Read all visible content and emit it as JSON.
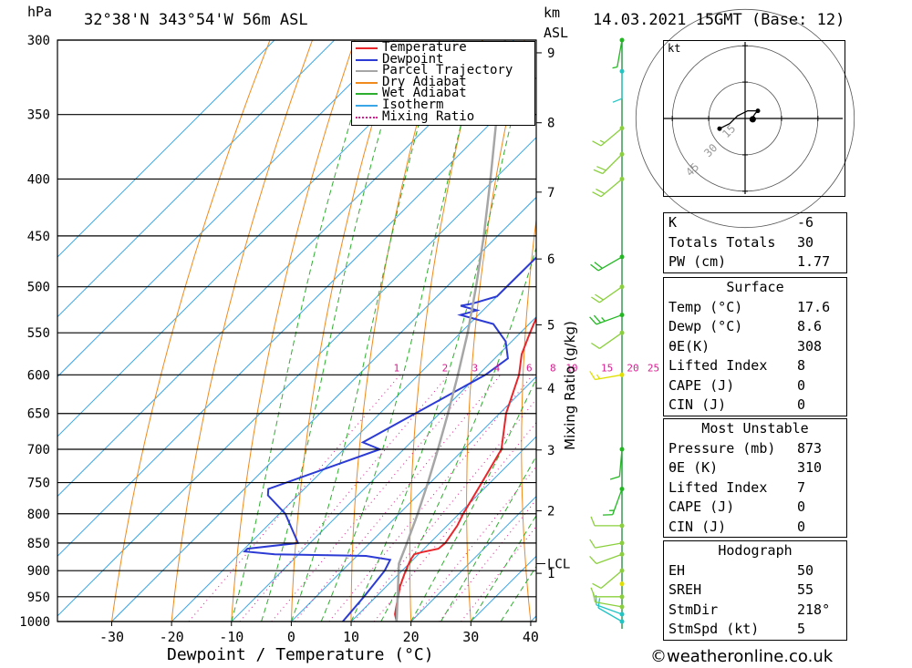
{
  "header": {
    "hpa_label": "hPa",
    "location": "32°38'N  343°54'W  56m  ASL",
    "km_label": "km",
    "asl_label": "ASL",
    "datetime": "14.03.2021  15GMT  (Base: 12)"
  },
  "chart_data": {
    "type": "line",
    "title": "",
    "xlabel": "Dewpoint / Temperature (°C)",
    "ylabel": "hPa",
    "xlim": [
      -40,
      40
    ],
    "ylim": [
      1000,
      300
    ],
    "y_scale": "log",
    "x_ticks": [
      -30,
      -20,
      -10,
      0,
      10,
      20,
      30,
      40
    ],
    "pressure_levels": [
      300,
      350,
      400,
      450,
      500,
      550,
      600,
      650,
      700,
      750,
      800,
      850,
      900,
      950,
      1000
    ],
    "km_ticks": [
      {
        "km": "1",
        "p": 905
      },
      {
        "km": "2",
        "p": 795
      },
      {
        "km": "3",
        "p": 701
      },
      {
        "km": "4",
        "p": 617
      },
      {
        "km": "5",
        "p": 541
      },
      {
        "km": "6",
        "p": 472
      },
      {
        "km": "7",
        "p": 411
      },
      {
        "km": "8",
        "p": 356
      },
      {
        "km": "9",
        "p": 308
      }
    ],
    "lcl": {
      "label": "LCL",
      "p": 887
    },
    "mixing_ratio_label": "Mixing Ratio (g/kg)",
    "mixing_ratio_values": [
      "1",
      "2",
      "3",
      "4",
      "6",
      "8",
      "10",
      "15",
      "20",
      "25"
    ],
    "dry_adiabats": [
      -30,
      -20,
      -10,
      0,
      10,
      20,
      30,
      40,
      50,
      60,
      70,
      80,
      90,
      100,
      110,
      120
    ],
    "wet_adiabats": [
      -10,
      -5,
      0,
      5,
      10,
      15,
      20,
      25,
      30,
      35
    ],
    "isotherms": [
      -100,
      -90,
      -80,
      -70,
      -60,
      -50,
      -40,
      -30,
      -20,
      -10,
      0,
      10,
      20,
      30,
      40
    ],
    "series": [
      {
        "name": "Temperature",
        "color": "#e8262b",
        "points": [
          [
            1000,
            17.6
          ],
          [
            985,
            16.1
          ],
          [
            960,
            14.4
          ],
          [
            930,
            12.3
          ],
          [
            900,
            10.6
          ],
          [
            880,
            9.6
          ],
          [
            870,
            9.3
          ],
          [
            866,
            10.3
          ],
          [
            860,
            12.4
          ],
          [
            850,
            12.6
          ],
          [
            820,
            11.7
          ],
          [
            800,
            10.7
          ],
          [
            750,
            8.6
          ],
          [
            700,
            6.3
          ],
          [
            650,
            1.1
          ],
          [
            600,
            -3.2
          ],
          [
            575,
            -6.2
          ],
          [
            550,
            -8.4
          ],
          [
            500,
            -12.8
          ],
          [
            450,
            -18.9
          ],
          [
            400,
            -26.1
          ],
          [
            350,
            -36.2
          ],
          [
            320,
            -43
          ],
          [
            300,
            -47.2
          ]
        ]
      },
      {
        "name": "Dewpoint",
        "color": "#2b3bd4",
        "points": [
          [
            1000,
            8.6
          ],
          [
            950,
            8.0
          ],
          [
            900,
            7.1
          ],
          [
            880,
            6.2
          ],
          [
            873,
            1.5
          ],
          [
            870,
            -14
          ],
          [
            865,
            -19.5
          ],
          [
            860,
            -19.5
          ],
          [
            850,
            -12
          ],
          [
            800,
            -19
          ],
          [
            770,
            -25
          ],
          [
            760,
            -26
          ],
          [
            700,
            -14
          ],
          [
            690,
            -18
          ],
          [
            600,
            -8.8
          ],
          [
            580,
            -7.8
          ],
          [
            560,
            -11
          ],
          [
            540,
            -16
          ],
          [
            530,
            -23
          ],
          [
            525,
            -21
          ],
          [
            520,
            -24.5
          ],
          [
            518,
            -23
          ],
          [
            510,
            -20
          ],
          [
            450,
            -19.9
          ],
          [
            400,
            -26.8
          ],
          [
            350,
            -38.8
          ],
          [
            345,
            -36.5
          ],
          [
            336,
            -37
          ],
          [
            330,
            -36
          ],
          [
            320,
            -40
          ],
          [
            315,
            -50
          ],
          [
            312,
            -41
          ],
          [
            305,
            -42
          ],
          [
            300,
            -44
          ]
        ]
      },
      {
        "name": "Parcel Trajectory",
        "color": "#a6a6a6",
        "points": [
          [
            1000,
            17.6
          ],
          [
            887,
            8.3
          ],
          [
            850,
            6.2
          ],
          [
            800,
            3.1
          ],
          [
            750,
            -0.4
          ],
          [
            700,
            -4.3
          ],
          [
            650,
            -8.6
          ],
          [
            600,
            -13.4
          ],
          [
            550,
            -18.8
          ],
          [
            500,
            -25.1
          ],
          [
            450,
            -32.3
          ],
          [
            400,
            -40.7
          ],
          [
            350,
            -50.4
          ],
          [
            300,
            -61.5
          ]
        ]
      }
    ],
    "legend_placement": "top-right",
    "grid": true
  },
  "legend": [
    {
      "label": "Temperature",
      "color": "#e8262b",
      "style": "solid"
    },
    {
      "label": "Dewpoint",
      "color": "#2b3bd4",
      "style": "solid"
    },
    {
      "label": "Parcel Trajectory",
      "color": "#a6a6a6",
      "style": "solid"
    },
    {
      "label": "Dry Adiabat",
      "color": "#f08a1c",
      "style": "solid"
    },
    {
      "label": "Wet Adiabat",
      "color": "#2eae2e",
      "style": "solid"
    },
    {
      "label": "Isotherm",
      "color": "#39a6e8",
      "style": "solid"
    },
    {
      "label": "Mixing Ratio",
      "color": "#d81b8f",
      "style": "dotted"
    }
  ],
  "wind_profile": {
    "levels": [
      {
        "p": 1000,
        "dir": 300,
        "spd": 10,
        "color": "#22c4c4"
      },
      {
        "p": 985,
        "dir": 290,
        "spd": 10,
        "color": "#22c4c4"
      },
      {
        "p": 970,
        "dir": 280,
        "spd": 10,
        "color": "#8ad03c"
      },
      {
        "p": 950,
        "dir": 270,
        "spd": 10,
        "color": "#8ad03c"
      },
      {
        "p": 925,
        "dir": 0,
        "spd": 0,
        "color": "#e0e000"
      },
      {
        "p": 900,
        "dir": 230,
        "spd": 10,
        "color": "#8ad03c"
      },
      {
        "p": 870,
        "dir": 250,
        "spd": 10,
        "color": "#8ad03c"
      },
      {
        "p": 850,
        "dir": 260,
        "spd": 10,
        "color": "#8ad03c"
      },
      {
        "p": 820,
        "dir": 270,
        "spd": 10,
        "color": "#8ad03c"
      },
      {
        "p": 760,
        "dir": 200,
        "spd": 15,
        "color": "#22b822"
      },
      {
        "p": 700,
        "dir": 185,
        "spd": 10,
        "color": "#22b822"
      },
      {
        "p": 600,
        "dir": 260,
        "spd": 15,
        "color": "#e0e000"
      },
      {
        "p": 550,
        "dir": 235,
        "spd": 10,
        "color": "#8ad03c"
      },
      {
        "p": 530,
        "dir": 250,
        "spd": 25,
        "color": "#22b822"
      },
      {
        "p": 500,
        "dir": 235,
        "spd": 20,
        "color": "#8ad03c"
      },
      {
        "p": 470,
        "dir": 240,
        "spd": 20,
        "color": "#22b822"
      },
      {
        "p": 400,
        "dir": 230,
        "spd": 20,
        "color": "#8ad03c"
      },
      {
        "p": 380,
        "dir": 225,
        "spd": 20,
        "color": "#8ad03c"
      },
      {
        "p": 360,
        "dir": 230,
        "spd": 15,
        "color": "#8ad03c"
      },
      {
        "p": 320,
        "dir": 180,
        "spd": 10,
        "color": "#22c4c4"
      },
      {
        "p": 300,
        "dir": 190,
        "spd": 5,
        "color": "#22b822"
      }
    ]
  },
  "hodograph": {
    "unit_label": "kt",
    "ring_labels": [
      "15",
      "30",
      "45"
    ],
    "trace_kt": [
      [
        2,
        -1
      ],
      [
        4,
        2
      ],
      [
        5,
        3
      ],
      [
        1,
        3
      ],
      [
        -3,
        1
      ],
      [
        -6,
        -2
      ],
      [
        -10,
        -4
      ]
    ],
    "storm_motion_kt": [
      3,
      1
    ]
  },
  "indices": {
    "general": [
      {
        "label": "K",
        "value": "-6"
      },
      {
        "label": "Totals Totals",
        "value": "30"
      },
      {
        "label": "PW (cm)",
        "value": "1.77"
      }
    ],
    "surface_title": "Surface",
    "surface": [
      {
        "label": "Temp (°C)",
        "value": "17.6"
      },
      {
        "label": "Dewp (°C)",
        "value": "8.6"
      },
      {
        "label": "θE(K)",
        "value": "308"
      },
      {
        "label": "Lifted Index",
        "value": "8"
      },
      {
        "label": "CAPE (J)",
        "value": "0"
      },
      {
        "label": "CIN (J)",
        "value": "0"
      }
    ],
    "mu_title": "Most Unstable",
    "most_unstable": [
      {
        "label": "Pressure (mb)",
        "value": "873"
      },
      {
        "label": "θE (K)",
        "value": "310"
      },
      {
        "label": "Lifted Index",
        "value": "7"
      },
      {
        "label": "CAPE (J)",
        "value": "0"
      },
      {
        "label": "CIN (J)",
        "value": "0"
      }
    ],
    "hodo_title": "Hodograph",
    "hodograph": [
      {
        "label": "EH",
        "value": "50"
      },
      {
        "label": "SREH",
        "value": "55"
      },
      {
        "label": "StmDir",
        "value": "218°"
      },
      {
        "label": "StmSpd (kt)",
        "value": "5"
      }
    ]
  },
  "footer": {
    "credit": "©weatheronline.co.uk"
  }
}
